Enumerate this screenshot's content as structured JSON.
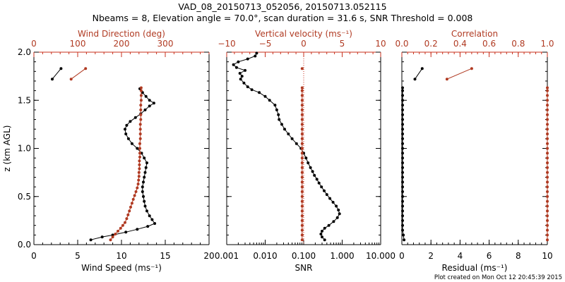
{
  "header": {
    "line1": "VAD_08_20150713_052056, 20150713.052115",
    "line2": "Nbeams = 8, Elevation angle = 70.0°, scan duration = 31.6 s, SNR Threshold = 0.008"
  },
  "footer": "Plot created on Mon Oct 12 20:45:39 2015",
  "colors": {
    "black": "#000000",
    "red": "#b03a22",
    "red_axis": "#c8301c"
  },
  "chart_data": [
    {
      "type": "line",
      "title": "",
      "xlabel_bottom": "Wind Speed (ms⁻¹)",
      "xlabel_top": "Wind Direction (deg)",
      "ylabel": "z (km AGL)",
      "xlim_bottom": [
        0,
        20
      ],
      "xlim_top": [
        0,
        400
      ],
      "ylim": [
        0,
        2.0
      ],
      "xticks_bottom": [
        "0",
        "5",
        "10",
        "15",
        "20"
      ],
      "xticks_bottom_values": [
        0,
        5,
        10,
        15,
        20
      ],
      "xticks_top": [
        "0",
        "100",
        "200",
        "300"
      ],
      "xticks_top_values": [
        0,
        100,
        200,
        300
      ],
      "yticks": [
        "0.0",
        "0.5",
        "1.0",
        "1.5",
        "2.0"
      ],
      "yticks_values": [
        0.0,
        0.5,
        1.0,
        1.5,
        2.0
      ],
      "series": [
        {
          "axis": "bottom",
          "color": "black",
          "points": [
            [
              6.5,
              0.05
            ],
            [
              7.8,
              0.08
            ],
            [
              9.0,
              0.1
            ],
            [
              10.5,
              0.13
            ],
            [
              11.8,
              0.16
            ],
            [
              13.0,
              0.19
            ],
            [
              13.8,
              0.22
            ],
            [
              13.5,
              0.26
            ],
            [
              13.2,
              0.3
            ],
            [
              12.9,
              0.35
            ],
            [
              12.7,
              0.4
            ],
            [
              12.6,
              0.45
            ],
            [
              12.5,
              0.5
            ],
            [
              12.4,
              0.55
            ],
            [
              12.4,
              0.6
            ],
            [
              12.5,
              0.65
            ],
            [
              12.6,
              0.7
            ],
            [
              12.7,
              0.75
            ],
            [
              12.8,
              0.8
            ],
            [
              12.9,
              0.85
            ],
            [
              12.6,
              0.9
            ],
            [
              12.3,
              0.95
            ],
            [
              11.8,
              1.0
            ],
            [
              11.2,
              1.05
            ],
            [
              10.8,
              1.1
            ],
            [
              10.5,
              1.15
            ],
            [
              10.4,
              1.2
            ],
            [
              10.6,
              1.24
            ],
            [
              11.0,
              1.28
            ],
            [
              11.6,
              1.32
            ],
            [
              12.2,
              1.36
            ],
            [
              12.7,
              1.4
            ],
            [
              13.2,
              1.44
            ],
            [
              13.7,
              1.47
            ],
            [
              13.2,
              1.5
            ],
            [
              12.8,
              1.54
            ],
            [
              12.4,
              1.58
            ],
            [
              12.1,
              1.62
            ]
          ]
        },
        {
          "axis": "bottom",
          "color": "black",
          "points": [
            [
              3.1,
              1.83
            ],
            [
              2.1,
              1.72
            ]
          ]
        },
        {
          "axis": "top",
          "color": "red",
          "points": [
            [
              175,
              0.05
            ],
            [
              180,
              0.08
            ],
            [
              186,
              0.11
            ],
            [
              192,
              0.14
            ],
            [
              198,
              0.17
            ],
            [
              203,
              0.2
            ],
            [
              208,
              0.23
            ],
            [
              212,
              0.27
            ],
            [
              215,
              0.31
            ],
            [
              218,
              0.35
            ],
            [
              221,
              0.39
            ],
            [
              224,
              0.43
            ],
            [
              227,
              0.47
            ],
            [
              230,
              0.51
            ],
            [
              233,
              0.55
            ],
            [
              236,
              0.59
            ],
            [
              238,
              0.63
            ],
            [
              239,
              0.67
            ],
            [
              240,
              0.71
            ],
            [
              240,
              0.75
            ],
            [
              241,
              0.79
            ],
            [
              241,
              0.83
            ],
            [
              241,
              0.87
            ],
            [
              242,
              0.91
            ],
            [
              242,
              0.95
            ],
            [
              242,
              1.0
            ],
            [
              242,
              1.05
            ],
            [
              243,
              1.1
            ],
            [
              243,
              1.15
            ],
            [
              243,
              1.2
            ],
            [
              243,
              1.25
            ],
            [
              244,
              1.3
            ],
            [
              244,
              1.35
            ],
            [
              244,
              1.4
            ],
            [
              244,
              1.45
            ],
            [
              245,
              1.5
            ],
            [
              245,
              1.55
            ],
            [
              245,
              1.6
            ],
            [
              245,
              1.63
            ]
          ]
        },
        {
          "axis": "top",
          "color": "red",
          "points": [
            [
              118,
              1.83
            ],
            [
              85,
              1.72
            ]
          ]
        }
      ]
    },
    {
      "type": "line",
      "title": "",
      "xlabel_bottom": "SNR",
      "xlabel_top": "Vertical velocity (ms⁻¹)",
      "xscale_bottom": "log",
      "xlim_bottom": [
        0.001,
        10
      ],
      "xlim_top": [
        -10,
        10
      ],
      "ylim": [
        0,
        2.0
      ],
      "xticks_bottom": [
        "0.001",
        "0.010",
        "0.100",
        "1.000",
        "10.000"
      ],
      "xticks_bottom_values": [
        0.001,
        0.01,
        0.1,
        1,
        10
      ],
      "xticks_top": [
        "−10",
        "−5",
        "0",
        "5",
        "10"
      ],
      "xticks_top_values": [
        -10,
        -5,
        0,
        5,
        10
      ],
      "zero_line_top": 0,
      "series": [
        {
          "axis": "bottom",
          "color": "black",
          "points": [
            [
              0.35,
              0.05
            ],
            [
              0.3,
              0.08
            ],
            [
              0.28,
              0.11
            ],
            [
              0.3,
              0.14
            ],
            [
              0.35,
              0.17
            ],
            [
              0.45,
              0.2
            ],
            [
              0.6,
              0.24
            ],
            [
              0.75,
              0.28
            ],
            [
              0.85,
              0.32
            ],
            [
              0.8,
              0.36
            ],
            [
              0.7,
              0.4
            ],
            [
              0.58,
              0.44
            ],
            [
              0.48,
              0.48
            ],
            [
              0.4,
              0.52
            ],
            [
              0.34,
              0.56
            ],
            [
              0.29,
              0.6
            ],
            [
              0.25,
              0.64
            ],
            [
              0.22,
              0.68
            ],
            [
              0.19,
              0.72
            ],
            [
              0.17,
              0.76
            ],
            [
              0.15,
              0.8
            ],
            [
              0.13,
              0.85
            ],
            [
              0.115,
              0.9
            ],
            [
              0.1,
              0.95
            ],
            [
              0.085,
              1.0
            ],
            [
              0.065,
              1.05
            ],
            [
              0.05,
              1.1
            ],
            [
              0.04,
              1.15
            ],
            [
              0.032,
              1.2
            ],
            [
              0.027,
              1.25
            ],
            [
              0.023,
              1.3
            ],
            [
              0.022,
              1.35
            ],
            [
              0.02,
              1.4
            ],
            [
              0.018,
              1.45
            ],
            [
              0.013,
              1.5
            ],
            [
              0.01,
              1.54
            ],
            [
              0.007,
              1.58
            ],
            [
              0.0045,
              1.61
            ],
            [
              0.0035,
              1.64
            ],
            [
              0.0028,
              1.68
            ],
            [
              0.0023,
              1.72
            ],
            [
              0.0025,
              1.75
            ],
            [
              0.0022,
              1.78
            ],
            [
              0.003,
              1.81
            ],
            [
              0.0018,
              1.84
            ],
            [
              0.0015,
              1.87
            ],
            [
              0.002,
              1.9
            ],
            [
              0.0035,
              1.93
            ],
            [
              0.0055,
              1.96
            ],
            [
              0.006,
              1.99
            ]
          ]
        },
        {
          "axis": "top",
          "color": "red",
          "points": [
            [
              -0.2,
              0.05
            ],
            [
              -0.2,
              0.1
            ],
            [
              -0.2,
              0.15
            ],
            [
              -0.2,
              0.2
            ],
            [
              -0.2,
              0.25
            ],
            [
              -0.2,
              0.3
            ],
            [
              -0.2,
              0.35
            ],
            [
              -0.2,
              0.4
            ],
            [
              -0.2,
              0.45
            ],
            [
              -0.2,
              0.5
            ],
            [
              -0.2,
              0.55
            ],
            [
              -0.2,
              0.6
            ],
            [
              -0.2,
              0.65
            ],
            [
              -0.2,
              0.7
            ],
            [
              -0.2,
              0.75
            ],
            [
              -0.2,
              0.8
            ],
            [
              -0.2,
              0.85
            ],
            [
              -0.2,
              0.9
            ],
            [
              -0.2,
              0.95
            ],
            [
              -0.2,
              1.0
            ],
            [
              -0.2,
              1.05
            ],
            [
              -0.2,
              1.1
            ],
            [
              -0.2,
              1.15
            ],
            [
              -0.2,
              1.2
            ],
            [
              -0.2,
              1.25
            ],
            [
              -0.2,
              1.3
            ],
            [
              -0.2,
              1.35
            ],
            [
              -0.2,
              1.4
            ],
            [
              -0.2,
              1.45
            ],
            [
              -0.2,
              1.5
            ],
            [
              -0.2,
              1.55
            ],
            [
              -0.2,
              1.6
            ],
            [
              -0.2,
              1.63
            ]
          ]
        },
        {
          "axis": "top",
          "color": "red",
          "points": [
            [
              -0.2,
              1.83
            ]
          ]
        }
      ]
    },
    {
      "type": "line",
      "title": "",
      "xlabel_bottom": "Residual (ms⁻¹)",
      "xlabel_top": "Correlation",
      "xlim_bottom": [
        0,
        10
      ],
      "xlim_top": [
        0,
        1.0
      ],
      "ylim": [
        0,
        2.0
      ],
      "xticks_bottom": [
        "0",
        "2",
        "4",
        "6",
        "8",
        "10"
      ],
      "xticks_bottom_values": [
        0,
        2,
        4,
        6,
        8,
        10
      ],
      "xticks_top": [
        "0.0",
        "0.2",
        "0.4",
        "0.6",
        "0.8",
        "1.0"
      ],
      "xticks_top_values": [
        0,
        0.2,
        0.4,
        0.6,
        0.8,
        1.0
      ],
      "series": [
        {
          "axis": "bottom",
          "color": "black",
          "points": [
            [
              0.15,
              0.05
            ],
            [
              0.1,
              0.1
            ],
            [
              0.05,
              0.15
            ],
            [
              0.05,
              0.2
            ],
            [
              0.05,
              0.25
            ],
            [
              0.05,
              0.3
            ],
            [
              0.05,
              0.35
            ],
            [
              0.05,
              0.4
            ],
            [
              0.05,
              0.45
            ],
            [
              0.05,
              0.5
            ],
            [
              0.05,
              0.55
            ],
            [
              0.05,
              0.6
            ],
            [
              0.05,
              0.65
            ],
            [
              0.05,
              0.7
            ],
            [
              0.05,
              0.75
            ],
            [
              0.05,
              0.8
            ],
            [
              0.05,
              0.85
            ],
            [
              0.05,
              0.9
            ],
            [
              0.05,
              0.95
            ],
            [
              0.05,
              1.0
            ],
            [
              0.05,
              1.05
            ],
            [
              0.05,
              1.1
            ],
            [
              0.05,
              1.15
            ],
            [
              0.05,
              1.2
            ],
            [
              0.05,
              1.25
            ],
            [
              0.05,
              1.3
            ],
            [
              0.05,
              1.35
            ],
            [
              0.05,
              1.4
            ],
            [
              0.05,
              1.45
            ],
            [
              0.05,
              1.5
            ],
            [
              0.05,
              1.55
            ],
            [
              0.05,
              1.6
            ],
            [
              0.05,
              1.63
            ]
          ]
        },
        {
          "axis": "bottom",
          "color": "black",
          "points": [
            [
              1.4,
              1.83
            ],
            [
              0.9,
              1.72
            ]
          ]
        },
        {
          "axis": "top",
          "color": "red",
          "points": [
            [
              1.0,
              0.05
            ],
            [
              1.0,
              0.1
            ],
            [
              1.0,
              0.15
            ],
            [
              1.0,
              0.2
            ],
            [
              1.0,
              0.25
            ],
            [
              1.0,
              0.3
            ],
            [
              1.0,
              0.35
            ],
            [
              1.0,
              0.4
            ],
            [
              1.0,
              0.45
            ],
            [
              1.0,
              0.5
            ],
            [
              1.0,
              0.55
            ],
            [
              1.0,
              0.6
            ],
            [
              1.0,
              0.65
            ],
            [
              1.0,
              0.7
            ],
            [
              1.0,
              0.75
            ],
            [
              1.0,
              0.8
            ],
            [
              1.0,
              0.85
            ],
            [
              1.0,
              0.9
            ],
            [
              1.0,
              0.95
            ],
            [
              1.0,
              1.0
            ],
            [
              1.0,
              1.05
            ],
            [
              1.0,
              1.1
            ],
            [
              1.0,
              1.15
            ],
            [
              1.0,
              1.2
            ],
            [
              1.0,
              1.25
            ],
            [
              1.0,
              1.3
            ],
            [
              1.0,
              1.35
            ],
            [
              1.0,
              1.4
            ],
            [
              1.0,
              1.45
            ],
            [
              1.0,
              1.5
            ],
            [
              1.0,
              1.55
            ],
            [
              1.0,
              1.6
            ],
            [
              1.0,
              1.63
            ]
          ]
        },
        {
          "axis": "top",
          "color": "red",
          "points": [
            [
              0.48,
              1.83
            ],
            [
              0.31,
              1.72
            ]
          ]
        }
      ]
    }
  ]
}
